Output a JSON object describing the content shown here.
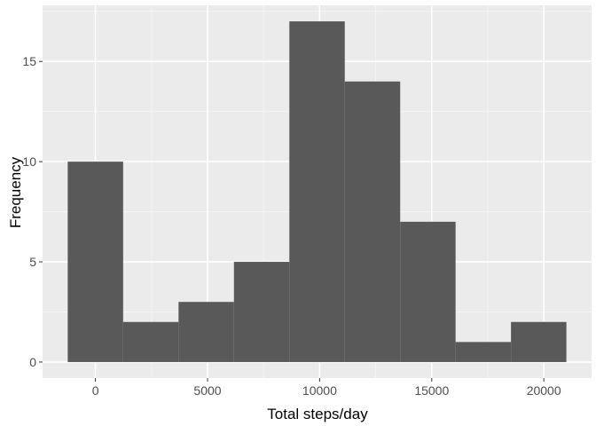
{
  "chart_data": {
    "type": "bar",
    "subtype": "histogram",
    "xlabel": "Total steps/day",
    "ylabel": "Frequency",
    "bin_width": 2471.3,
    "bins": [
      {
        "x_start": -1235.6,
        "x_end": 1235.7,
        "count": 10
      },
      {
        "x_start": 1235.7,
        "x_end": 3707.0,
        "count": 2
      },
      {
        "x_start": 3707.0,
        "x_end": 6178.3,
        "count": 3
      },
      {
        "x_start": 6178.3,
        "x_end": 8649.6,
        "count": 5
      },
      {
        "x_start": 8649.6,
        "x_end": 11120.9,
        "count": 17
      },
      {
        "x_start": 11120.9,
        "x_end": 13592.2,
        "count": 14
      },
      {
        "x_start": 13592.2,
        "x_end": 16063.5,
        "count": 7
      },
      {
        "x_start": 16063.5,
        "x_end": 18534.8,
        "count": 1
      },
      {
        "x_start": 18534.8,
        "x_end": 21006.1,
        "count": 2
      }
    ],
    "xlim": [
      -2358,
      22129
    ],
    "ylim": [
      -0.8,
      17.8
    ],
    "x_ticks": [
      0,
      5000,
      10000,
      15000,
      20000
    ],
    "x_tick_labels": [
      "0",
      "5000",
      "10000",
      "15000",
      "20000"
    ],
    "x_minor_ticks": [
      2500,
      7500,
      12500,
      17500
    ],
    "y_ticks": [
      0,
      5,
      10,
      15
    ],
    "y_tick_labels": [
      "0",
      "5",
      "10",
      "15"
    ],
    "y_minor_ticks": [
      2.5,
      7.5,
      12.5,
      17.5
    ],
    "grid": true,
    "colors": {
      "bar_fill": "#595959",
      "panel_background": "#ebebeb",
      "grid_major": "#ffffff",
      "grid_minor": "#f5f5f5",
      "tick_text": "#4d4d4d",
      "axis_title": "#000000",
      "tick_mark": "#333333"
    }
  }
}
